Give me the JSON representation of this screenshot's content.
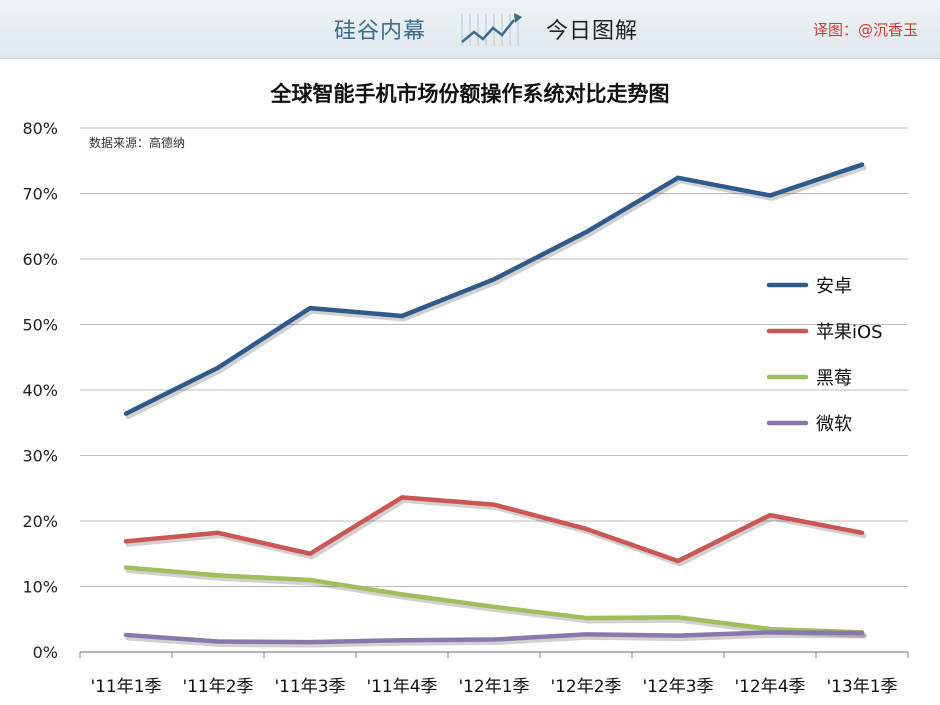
{
  "header": {
    "brand": "硅谷内幕",
    "logo_icon": "trend-chart-icon",
    "subtitle": "今日图解",
    "credit": "译图：@沉香玉"
  },
  "colors": {
    "android": "#2e5a8c",
    "ios": "#cc5651",
    "blackberry": "#9fbf5a",
    "microsoft": "#8a78ad",
    "credit": "#d23b2f",
    "brand": "#3d6d8c"
  },
  "chart_data": {
    "type": "line",
    "title": "全球智能手机市场份额操作系统对比走势图",
    "source_note": "数据来源：高德纳",
    "categories": [
      "'11年1季",
      "'11年2季",
      "'11年3季",
      "'11年4季",
      "'12年1季",
      "'12年2季",
      "'12年3季",
      "'12年4季",
      "'13年1季"
    ],
    "yticks": [
      "0%",
      "10%",
      "20%",
      "30%",
      "40%",
      "50%",
      "60%",
      "70%",
      "80%"
    ],
    "ylim": [
      0,
      80
    ],
    "grid": true,
    "legend_position": "right",
    "series": [
      {
        "name": "安卓",
        "values": [
          36.4,
          43.4,
          52.5,
          51.3,
          56.9,
          64.1,
          72.4,
          69.7,
          74.4
        ]
      },
      {
        "name": "苹果iOS",
        "values": [
          16.9,
          18.2,
          15.0,
          23.6,
          22.5,
          18.8,
          13.9,
          20.9,
          18.2
        ]
      },
      {
        "name": "黑莓",
        "values": [
          12.9,
          11.7,
          11.0,
          8.8,
          6.9,
          5.2,
          5.3,
          3.5,
          3.0
        ]
      },
      {
        "name": "微软",
        "values": [
          2.6,
          1.6,
          1.5,
          1.8,
          1.9,
          2.7,
          2.5,
          3.0,
          2.9
        ]
      }
    ]
  }
}
